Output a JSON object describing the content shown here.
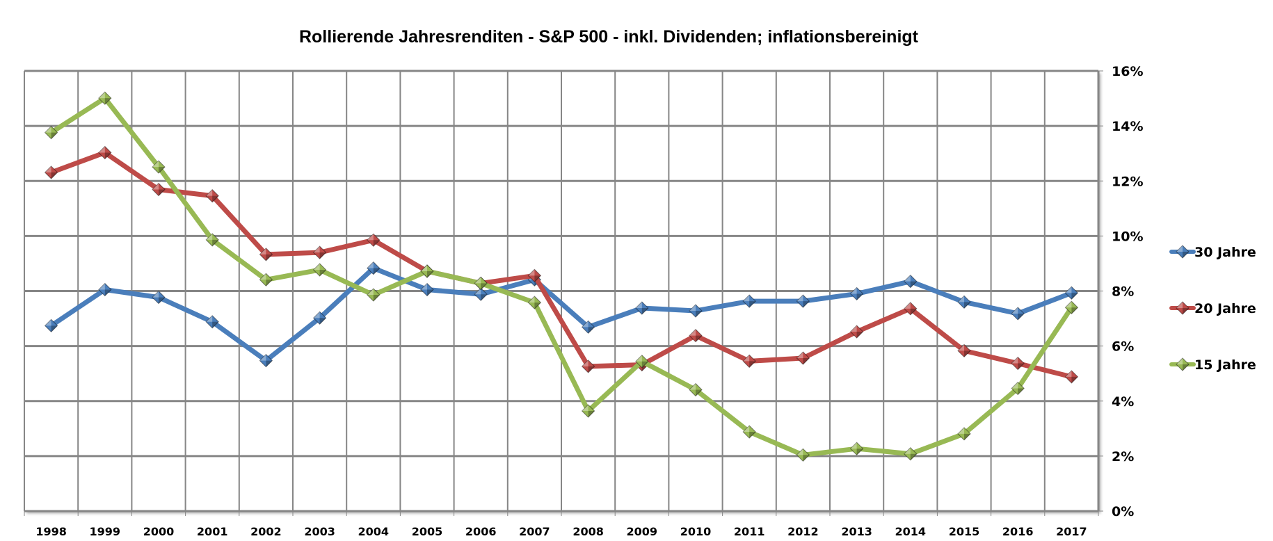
{
  "chart_data": {
    "type": "line",
    "title": "Rollierende Jahresrenditen - S&P 500 - inkl. Dividenden; inflationsbereinigt",
    "xlabel": "",
    "ylabel": "",
    "categories": [
      "1998",
      "1999",
      "2000",
      "2001",
      "2002",
      "2003",
      "2004",
      "2005",
      "2006",
      "2007",
      "2008",
      "2009",
      "2010",
      "2011",
      "2012",
      "2013",
      "2014",
      "2015",
      "2016",
      "2017"
    ],
    "ylim": [
      0,
      16
    ],
    "y_ticks": [
      0,
      2,
      4,
      6,
      8,
      10,
      12,
      14,
      16
    ],
    "y_tick_labels": [
      "0%",
      "2%",
      "4%",
      "6%",
      "8%",
      "10%",
      "12%",
      "14%",
      "16%"
    ],
    "y_axis_side": "right",
    "grid": true,
    "legend_position": "right",
    "series": [
      {
        "name": "30 Jahre",
        "color": "#4a7ebb",
        "marker": "diamond",
        "values": [
          6.74,
          8.05,
          7.77,
          6.88,
          5.47,
          7.02,
          8.83,
          8.05,
          7.88,
          8.41,
          6.69,
          7.38,
          7.28,
          7.63,
          7.63,
          7.9,
          8.35,
          7.6,
          7.18,
          7.93
        ]
      },
      {
        "name": "20 Jahre",
        "color": "#be4b48",
        "marker": "diamond",
        "values": [
          12.31,
          13.03,
          11.69,
          11.46,
          9.33,
          9.4,
          9.85,
          8.72,
          8.28,
          8.56,
          5.26,
          5.32,
          6.38,
          5.45,
          5.56,
          6.52,
          7.36,
          5.83,
          5.37,
          4.88
        ]
      },
      {
        "name": "15 Jahre",
        "color": "#98b954",
        "marker": "diamond",
        "values": [
          13.76,
          15.01,
          12.51,
          9.86,
          8.41,
          8.77,
          7.86,
          8.72,
          8.28,
          7.58,
          3.64,
          5.44,
          4.41,
          2.88,
          2.04,
          2.27,
          2.08,
          2.81,
          4.46,
          7.4
        ]
      }
    ]
  }
}
